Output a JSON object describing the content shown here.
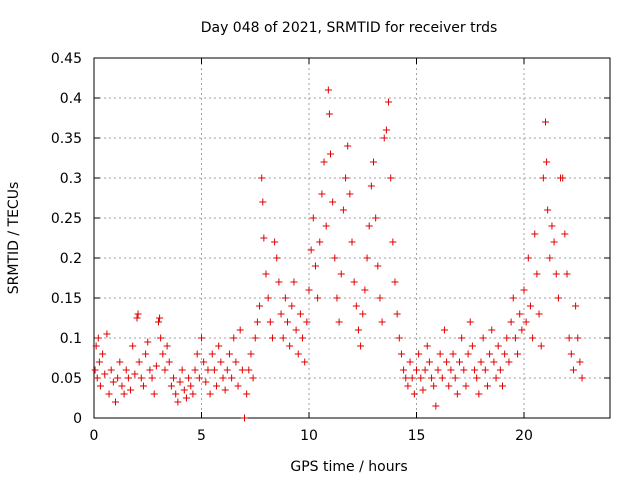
{
  "chart_data": {
    "type": "scatter",
    "title": "Day 048 of 2021, SRMTID for receiver trds",
    "xlabel": "GPS time / hours",
    "ylabel": "SRMTID / TECUs",
    "xlim": [
      0,
      24
    ],
    "ylim": [
      0,
      0.45
    ],
    "grid": true,
    "marker": "plus",
    "marker_color": "#e00000",
    "xticks": [
      0,
      5,
      10,
      15,
      20
    ],
    "xtick_labels": [
      "0",
      "5",
      "10",
      "15",
      "20"
    ],
    "yticks": [
      0,
      0.05,
      0.1,
      0.15,
      0.2,
      0.25,
      0.3,
      0.35,
      0.4,
      0.45
    ],
    "ytick_labels": [
      "0",
      "0.05",
      "0.1",
      "0.15",
      "0.2",
      "0.25",
      "0.3",
      "0.35",
      "0.4",
      "0.45"
    ],
    "points": [
      [
        0.05,
        0.06
      ],
      [
        0.1,
        0.09
      ],
      [
        0.15,
        0.05
      ],
      [
        0.2,
        0.1
      ],
      [
        0.25,
        0.07
      ],
      [
        0.3,
        0.04
      ],
      [
        0.4,
        0.08
      ],
      [
        0.5,
        0.055
      ],
      [
        0.6,
        0.105
      ],
      [
        0.7,
        0.03
      ],
      [
        0.8,
        0.06
      ],
      [
        0.9,
        0.045
      ],
      [
        1.0,
        0.02
      ],
      [
        1.1,
        0.05
      ],
      [
        1.2,
        0.07
      ],
      [
        1.3,
        0.04
      ],
      [
        1.4,
        0.03
      ],
      [
        1.5,
        0.06
      ],
      [
        1.6,
        0.05
      ],
      [
        1.7,
        0.035
      ],
      [
        1.8,
        0.09
      ],
      [
        1.9,
        0.055
      ],
      [
        2.0,
        0.125
      ],
      [
        2.05,
        0.13
      ],
      [
        2.1,
        0.07
      ],
      [
        2.2,
        0.05
      ],
      [
        2.3,
        0.04
      ],
      [
        2.4,
        0.08
      ],
      [
        2.5,
        0.095
      ],
      [
        2.6,
        0.06
      ],
      [
        2.7,
        0.05
      ],
      [
        2.8,
        0.03
      ],
      [
        2.9,
        0.065
      ],
      [
        3.0,
        0.12
      ],
      [
        3.05,
        0.125
      ],
      [
        3.1,
        0.1
      ],
      [
        3.2,
        0.08
      ],
      [
        3.3,
        0.06
      ],
      [
        3.4,
        0.09
      ],
      [
        3.5,
        0.07
      ],
      [
        3.6,
        0.04
      ],
      [
        3.7,
        0.05
      ],
      [
        3.8,
        0.03
      ],
      [
        3.9,
        0.02
      ],
      [
        4.0,
        0.045
      ],
      [
        4.1,
        0.06
      ],
      [
        4.2,
        0.035
      ],
      [
        4.3,
        0.025
      ],
      [
        4.4,
        0.05
      ],
      [
        4.5,
        0.04
      ],
      [
        4.6,
        0.03
      ],
      [
        4.7,
        0.06
      ],
      [
        4.8,
        0.08
      ],
      [
        4.9,
        0.05
      ],
      [
        5.0,
        0.1
      ],
      [
        5.1,
        0.07
      ],
      [
        5.2,
        0.045
      ],
      [
        5.3,
        0.06
      ],
      [
        5.4,
        0.03
      ],
      [
        5.5,
        0.08
      ],
      [
        5.6,
        0.06
      ],
      [
        5.7,
        0.04
      ],
      [
        5.8,
        0.09
      ],
      [
        5.9,
        0.07
      ],
      [
        6.0,
        0.05
      ],
      [
        6.1,
        0.035
      ],
      [
        6.2,
        0.06
      ],
      [
        6.3,
        0.08
      ],
      [
        6.4,
        0.05
      ],
      [
        6.5,
        0.1
      ],
      [
        6.6,
        0.07
      ],
      [
        6.7,
        0.04
      ],
      [
        6.8,
        0.11
      ],
      [
        6.9,
        0.06
      ],
      [
        7.0,
        0.0
      ],
      [
        7.1,
        0.03
      ],
      [
        7.2,
        0.06
      ],
      [
        7.3,
        0.08
      ],
      [
        7.4,
        0.05
      ],
      [
        7.5,
        0.1
      ],
      [
        7.6,
        0.12
      ],
      [
        7.7,
        0.14
      ],
      [
        7.8,
        0.3
      ],
      [
        7.85,
        0.27
      ],
      [
        7.9,
        0.225
      ],
      [
        8.0,
        0.18
      ],
      [
        8.1,
        0.15
      ],
      [
        8.2,
        0.12
      ],
      [
        8.3,
        0.1
      ],
      [
        8.4,
        0.22
      ],
      [
        8.5,
        0.2
      ],
      [
        8.6,
        0.17
      ],
      [
        8.7,
        0.13
      ],
      [
        8.8,
        0.1
      ],
      [
        8.9,
        0.15
      ],
      [
        9.0,
        0.12
      ],
      [
        9.1,
        0.09
      ],
      [
        9.2,
        0.14
      ],
      [
        9.3,
        0.17
      ],
      [
        9.4,
        0.11
      ],
      [
        9.5,
        0.08
      ],
      [
        9.6,
        0.13
      ],
      [
        9.7,
        0.1
      ],
      [
        9.8,
        0.07
      ],
      [
        9.9,
        0.12
      ],
      [
        10.0,
        0.16
      ],
      [
        10.1,
        0.21
      ],
      [
        10.2,
        0.25
      ],
      [
        10.3,
        0.19
      ],
      [
        10.4,
        0.15
      ],
      [
        10.5,
        0.22
      ],
      [
        10.6,
        0.28
      ],
      [
        10.7,
        0.32
      ],
      [
        10.8,
        0.24
      ],
      [
        10.9,
        0.41
      ],
      [
        10.95,
        0.38
      ],
      [
        11.0,
        0.33
      ],
      [
        11.1,
        0.27
      ],
      [
        11.2,
        0.2
      ],
      [
        11.3,
        0.15
      ],
      [
        11.4,
        0.12
      ],
      [
        11.5,
        0.18
      ],
      [
        11.6,
        0.26
      ],
      [
        11.7,
        0.3
      ],
      [
        11.8,
        0.34
      ],
      [
        11.9,
        0.28
      ],
      [
        12.0,
        0.22
      ],
      [
        12.1,
        0.17
      ],
      [
        12.2,
        0.14
      ],
      [
        12.3,
        0.11
      ],
      [
        12.4,
        0.09
      ],
      [
        12.5,
        0.13
      ],
      [
        12.6,
        0.16
      ],
      [
        12.7,
        0.2
      ],
      [
        12.8,
        0.24
      ],
      [
        12.9,
        0.29
      ],
      [
        13.0,
        0.32
      ],
      [
        13.1,
        0.25
      ],
      [
        13.2,
        0.19
      ],
      [
        13.3,
        0.15
      ],
      [
        13.4,
        0.12
      ],
      [
        13.5,
        0.35
      ],
      [
        13.6,
        0.36
      ],
      [
        13.7,
        0.395
      ],
      [
        13.8,
        0.3
      ],
      [
        13.9,
        0.22
      ],
      [
        14.0,
        0.17
      ],
      [
        14.1,
        0.13
      ],
      [
        14.2,
        0.1
      ],
      [
        14.3,
        0.08
      ],
      [
        14.4,
        0.06
      ],
      [
        14.5,
        0.05
      ],
      [
        14.6,
        0.04
      ],
      [
        14.7,
        0.07
      ],
      [
        14.8,
        0.05
      ],
      [
        14.9,
        0.03
      ],
      [
        15.0,
        0.06
      ],
      [
        15.1,
        0.08
      ],
      [
        15.2,
        0.05
      ],
      [
        15.3,
        0.035
      ],
      [
        15.4,
        0.06
      ],
      [
        15.5,
        0.09
      ],
      [
        15.6,
        0.07
      ],
      [
        15.7,
        0.05
      ],
      [
        15.8,
        0.04
      ],
      [
        15.9,
        0.015
      ],
      [
        16.0,
        0.06
      ],
      [
        16.1,
        0.08
      ],
      [
        16.2,
        0.05
      ],
      [
        16.3,
        0.11
      ],
      [
        16.4,
        0.07
      ],
      [
        16.5,
        0.04
      ],
      [
        16.6,
        0.06
      ],
      [
        16.7,
        0.08
      ],
      [
        16.8,
        0.05
      ],
      [
        16.9,
        0.03
      ],
      [
        17.0,
        0.07
      ],
      [
        17.1,
        0.1
      ],
      [
        17.2,
        0.06
      ],
      [
        17.3,
        0.04
      ],
      [
        17.4,
        0.08
      ],
      [
        17.5,
        0.12
      ],
      [
        17.6,
        0.09
      ],
      [
        17.7,
        0.06
      ],
      [
        17.8,
        0.05
      ],
      [
        17.9,
        0.03
      ],
      [
        18.0,
        0.07
      ],
      [
        18.1,
        0.1
      ],
      [
        18.2,
        0.06
      ],
      [
        18.3,
        0.04
      ],
      [
        18.4,
        0.08
      ],
      [
        18.5,
        0.11
      ],
      [
        18.6,
        0.07
      ],
      [
        18.7,
        0.05
      ],
      [
        18.8,
        0.09
      ],
      [
        18.9,
        0.06
      ],
      [
        19.0,
        0.04
      ],
      [
        19.1,
        0.08
      ],
      [
        19.2,
        0.1
      ],
      [
        19.3,
        0.07
      ],
      [
        19.4,
        0.12
      ],
      [
        19.5,
        0.15
      ],
      [
        19.6,
        0.1
      ],
      [
        19.7,
        0.08
      ],
      [
        19.8,
        0.13
      ],
      [
        19.9,
        0.11
      ],
      [
        20.0,
        0.16
      ],
      [
        20.1,
        0.12
      ],
      [
        20.2,
        0.2
      ],
      [
        20.3,
        0.14
      ],
      [
        20.4,
        0.1
      ],
      [
        20.5,
        0.23
      ],
      [
        20.6,
        0.18
      ],
      [
        20.7,
        0.13
      ],
      [
        20.8,
        0.09
      ],
      [
        20.9,
        0.3
      ],
      [
        21.0,
        0.37
      ],
      [
        21.05,
        0.32
      ],
      [
        21.1,
        0.26
      ],
      [
        21.2,
        0.2
      ],
      [
        21.3,
        0.24
      ],
      [
        21.4,
        0.22
      ],
      [
        21.5,
        0.18
      ],
      [
        21.6,
        0.15
      ],
      [
        21.7,
        0.3
      ],
      [
        21.8,
        0.3
      ],
      [
        21.9,
        0.23
      ],
      [
        22.0,
        0.18
      ],
      [
        22.1,
        0.1
      ],
      [
        22.2,
        0.08
      ],
      [
        22.3,
        0.06
      ],
      [
        22.4,
        0.14
      ],
      [
        22.5,
        0.1
      ],
      [
        22.6,
        0.07
      ],
      [
        22.7,
        0.05
      ]
    ]
  }
}
